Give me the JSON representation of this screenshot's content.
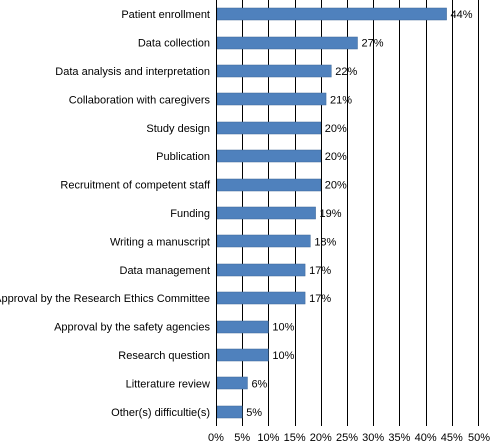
{
  "chart_data": {
    "type": "bar",
    "orientation": "horizontal",
    "title": "",
    "xlabel": "",
    "ylabel": "",
    "categories": [
      "Patient enrollment",
      "Data collection",
      "Data analysis and interpretation",
      "Collaboration with caregivers",
      "Study design",
      "Publication",
      "Recruitment of competent staff",
      "Funding",
      "Writing a manuscript",
      "Data management",
      "Approval by the Research Ethics Committee",
      "Approval by the safety agencies",
      "Research question",
      "Litterature review",
      "Other(s) difficultie(s)"
    ],
    "values": [
      44,
      27,
      22,
      21,
      20,
      20,
      20,
      19,
      18,
      17,
      17,
      10,
      10,
      6,
      5
    ],
    "value_labels": [
      "44%",
      "27%",
      "22%",
      "21%",
      "20%",
      "20%",
      "20%",
      "19%",
      "18%",
      "17%",
      "17%",
      "10%",
      "10%",
      "6%",
      "5%"
    ],
    "xlim": [
      0,
      50
    ],
    "xticks": [
      0,
      5,
      10,
      15,
      20,
      25,
      30,
      35,
      40,
      45,
      50
    ],
    "xtick_labels": [
      "0%",
      "5%",
      "10%",
      "15%",
      "20%",
      "25%",
      "30%",
      "35%",
      "40%",
      "45%",
      "50%"
    ],
    "grid": "vertical",
    "legend": "none",
    "bar_color": "#4F81BD",
    "bar_edge_color": "#3A6596",
    "grid_color": "#000000"
  }
}
